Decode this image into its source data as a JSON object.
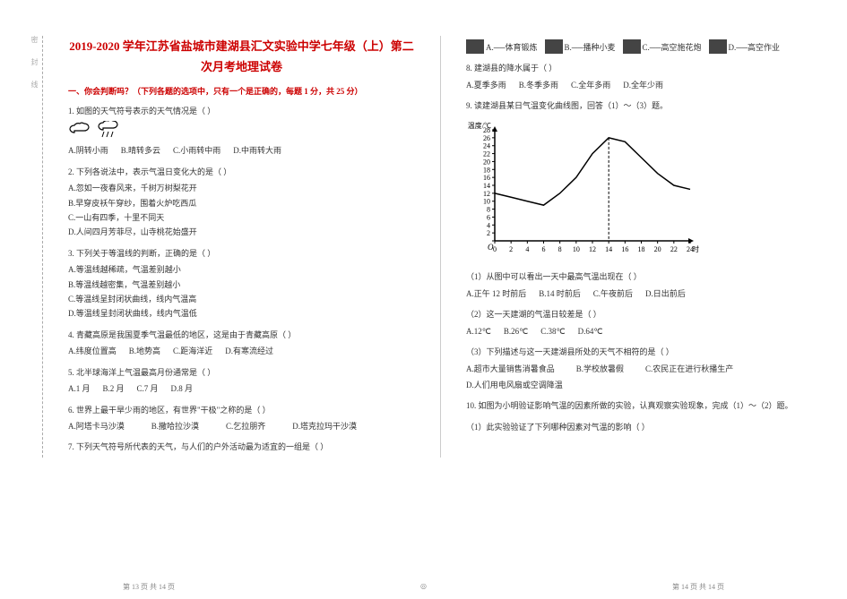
{
  "title": "2019-2020 学年江苏省盐城市建湖县汇文实验中学七年级（上）第二次月考地理试卷",
  "section1_head": "一、你会判断吗？（下列各题的选项中，只有一个是正确的，每题 1 分，共 25 分）",
  "q1": "1. 如图的天气符号表示的天气情况是（  ）",
  "q1_opts": {
    "a": "A.阴转小雨",
    "b": "B.晴转多云",
    "c": "C.小雨转中雨",
    "d": "D.中雨转大雨"
  },
  "q2": "2. 下列各说法中，表示气温日变化大的是（  ）",
  "q2_opts": {
    "a": "A.忽如一夜春风来，千树万树梨花开",
    "b": "B.早穿皮袄午穿纱，围着火炉吃西瓜",
    "c": "C.一山有四季，十里不同天",
    "d": "D.人间四月芳菲尽，山寺桃花始盛开"
  },
  "q3": "3. 下列关于等温线的判断，正确的是（  ）",
  "q3_opts": {
    "a": "A.等温线越稀疏，气温差别越小",
    "b": "B.等温线越密集，气温差别越小",
    "c": "C.等温线呈封闭状曲线，线内气温高",
    "d": "D.等温线呈封闭状曲线，线内气温低"
  },
  "q4": "4. 青藏高原是我国夏季气温最低的地区，这是由于青藏高原（  ）",
  "q4_opts": {
    "a": "A.纬度位置高",
    "b": "B.地势高",
    "c": "C.距海洋近",
    "d": "D.有寒流经过"
  },
  "q5": "5. 北半球海洋上气温最高月份通常是（  ）",
  "q5_opts": {
    "a": "A.1 月",
    "b": "B.2 月",
    "c": "C.7 月",
    "d": "D.8 月"
  },
  "q6": "6. 世界上最干旱少雨的地区，有世界\"干极\"之称的是（  ）",
  "q6_opts": {
    "a": "A.阿塔卡马沙漠",
    "b": "B.撒哈拉沙漠",
    "c": "C.乞拉朋齐",
    "d": "D.塔克拉玛干沙漠"
  },
  "q7": "7. 下列天气符号所代表的天气，与人们的户外活动最为适宜的一组是（  ）",
  "q7_icons": {
    "a": "A.──体育锻炼",
    "b": "B.──播种小麦",
    "c": "C.──高空施花炮",
    "d": "D.──高空作业"
  },
  "q8": "8. 建湖县的降水属于（  ）",
  "q8_opts": {
    "a": "A.夏季多雨",
    "b": "B.冬季多雨",
    "c": "C.全年多雨",
    "d": "D.全年少雨"
  },
  "q9": "9. 读建湖县某日气温变化曲线图，回答（1）～（3）题。",
  "chart": {
    "type": "line",
    "x": [
      0,
      2,
      4,
      6,
      8,
      10,
      12,
      14,
      16,
      18,
      20,
      22,
      24
    ],
    "y": [
      12,
      11,
      10,
      9,
      12,
      16,
      22,
      26,
      25,
      21,
      17,
      14,
      13
    ],
    "ylim": [
      0,
      28
    ],
    "ytick_step": 2,
    "xlabel": "时/时",
    "ylabel": "温度/℃",
    "line_color": "#000000",
    "line_width": 1.5,
    "bg": "#ffffff"
  },
  "q9_1": "（1）从图中可以看出一天中最高气温出现在（  ）",
  "q9_1_opts": {
    "a": "A.正午 12 时前后",
    "b": "B.14 时前后",
    "c": "C.午夜前后",
    "d": "D.日出前后"
  },
  "q9_2": "（2）这一天建湖的气温日较差是（  ）",
  "q9_2_opts": {
    "a": "A.12℃",
    "b": "B.26℃",
    "c": "C.38℃",
    "d": "D.64℃"
  },
  "q9_3": "（3）下列描述与这一天建湖县所处的天气不相符的是（  ）",
  "q9_3_opts": {
    "a": "A.超市大量销售消暑食品",
    "b": "B.学校放暑假",
    "c": "C.农民正在进行秋播生产",
    "d": "D.人们用电风扇或空调降温"
  },
  "q10": "10. 如图为小明验证影响气温的因素所做的实验，认真观察实验现象，完成（1）～（2）题。",
  "q10_1": "（1）此实验验证了下列哪种因素对气温的影响（  ）",
  "footer_left": "第 13 页 共 14 页",
  "footer_right": "第 14 页 共 14 页",
  "binding": "密 封 线"
}
